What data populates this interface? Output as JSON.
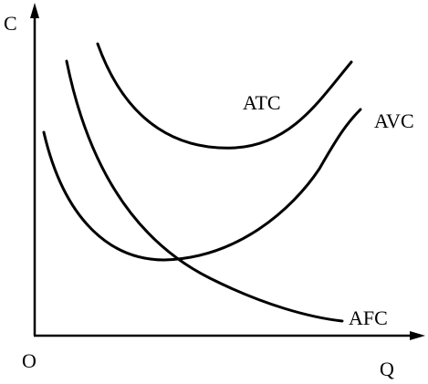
{
  "axes": {
    "y_label": "C",
    "x_label": "Q",
    "origin": "O"
  },
  "curves": [
    {
      "label": "ATC"
    },
    {
      "label": "AVC"
    },
    {
      "label": "AFC"
    }
  ]
}
